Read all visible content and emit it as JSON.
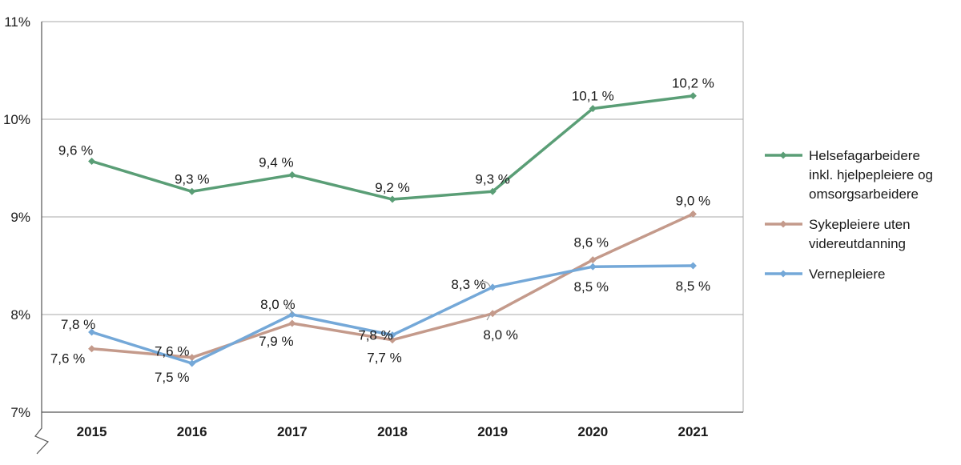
{
  "chart_data": {
    "type": "line",
    "title": "",
    "xlabel": "",
    "ylabel": "",
    "categories": [
      "2015",
      "2016",
      "2017",
      "2018",
      "2019",
      "2020",
      "2021"
    ],
    "ylim": [
      7,
      11
    ],
    "y_ticks": [
      {
        "value": 7,
        "label": "7%"
      },
      {
        "value": 8,
        "label": "8%"
      },
      {
        "value": 9,
        "label": "9%"
      },
      {
        "value": 10,
        "label": "10%"
      },
      {
        "value": 11,
        "label": "11%"
      }
    ],
    "grid": true,
    "legend_position": "right",
    "series": [
      {
        "name": "Helsefagarbeidere inkl. hjelpepleiere og omsorgsarbeidere",
        "legend_lines": [
          "Helsefagarbeidere",
          "inkl. hjelpepleiere og",
          "omsorgsarbeidere"
        ],
        "color": "#5a9e76",
        "values": [
          9.57,
          9.26,
          9.43,
          9.18,
          9.26,
          10.11,
          10.24
        ],
        "labels": [
          "9,6 %",
          "9,3 %",
          "9,4 %",
          "9,2 %",
          "9,3 %",
          "10,1 %",
          "10,2 %"
        ]
      },
      {
        "name": "Sykepleiere uten videreutdanning",
        "legend_lines": [
          "Sykepleiere uten",
          "videreutdanning"
        ],
        "color": "#c49a8b",
        "values": [
          7.65,
          7.56,
          7.91,
          7.74,
          8.01,
          8.56,
          9.03
        ],
        "labels": [
          "7,6 %",
          "7,6 %",
          "7,9 %",
          "7,7 %",
          "8,0 %",
          "8,6 %",
          "9,0 %"
        ]
      },
      {
        "name": "Vernepleiere",
        "legend_lines": [
          "Vernepleiere"
        ],
        "color": "#74a8d8",
        "values": [
          7.82,
          7.5,
          8.0,
          7.79,
          8.28,
          8.49,
          8.5
        ],
        "labels": [
          "7,8 %",
          "7,5 %",
          "8,0 %",
          "7,8 %",
          "8,3 %",
          "8,5 %",
          "8,5 %"
        ]
      }
    ]
  }
}
